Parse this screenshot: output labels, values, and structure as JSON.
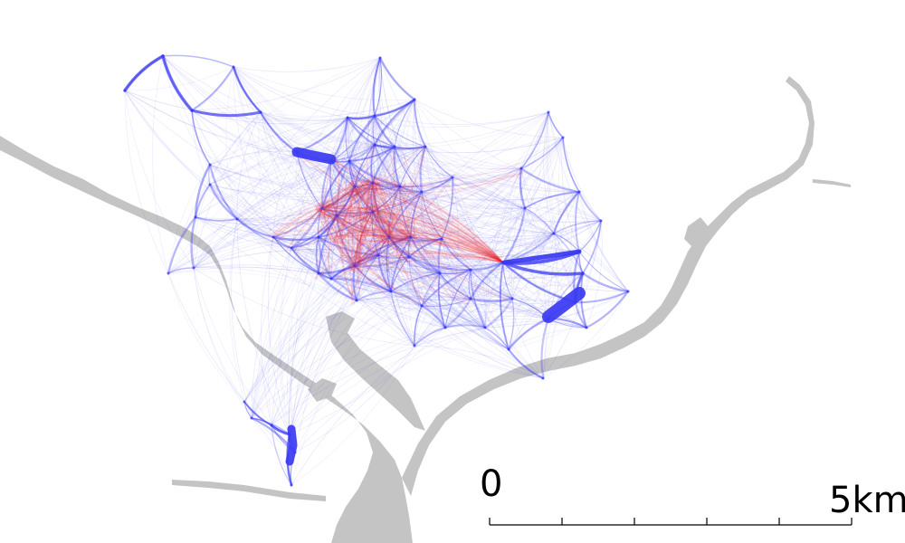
{
  "map": {
    "colors": {
      "background": "#ffffff",
      "water": "#c4c4c4",
      "edge_long": "#3a3af2",
      "edge_short": "#f22a2a",
      "scale": "#000000"
    },
    "scale_bar": {
      "start_label": "0",
      "end_label": "5km",
      "divisions": 5
    }
  }
}
